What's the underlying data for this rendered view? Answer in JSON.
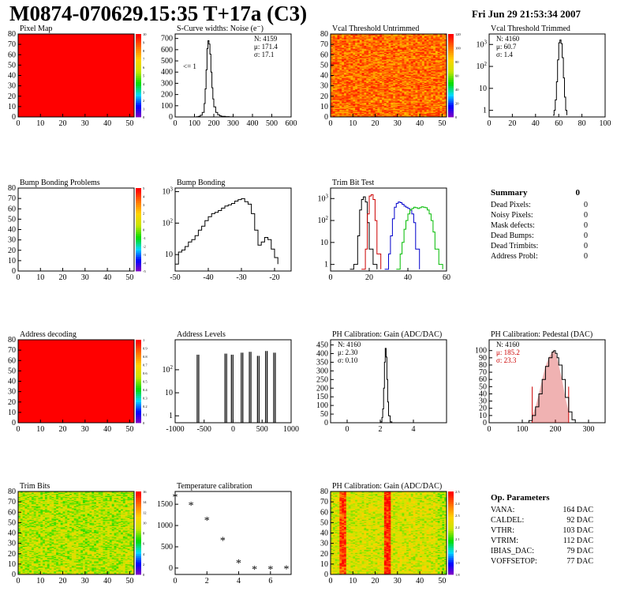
{
  "header": {
    "title": "M0874-070629.15:35 T+17a (C3)",
    "date": "Fri Jun 29 21:53:34 2007"
  },
  "colors": {
    "hist_line": "#000000",
    "trim_series": [
      "#000000",
      "#cc0000",
      "#0000cc",
      "#00bb00"
    ],
    "pedestal_stats": "#cc0000",
    "pedestal_fill": "#cc0000"
  },
  "summary": {
    "title": "Summary",
    "title_value": "0",
    "rows": [
      {
        "label": "Dead Pixels:",
        "value": "0"
      },
      {
        "label": "Noisy Pixels:",
        "value": "0"
      },
      {
        "label": "Mask defects:",
        "value": "0"
      },
      {
        "label": "Dead Bumps:",
        "value": "0"
      },
      {
        "label": "Dead Trimbits:",
        "value": "0"
      },
      {
        "label": "Address Probl:",
        "value": "0"
      }
    ]
  },
  "op_params": {
    "title": "Op. Parameters",
    "rows": [
      {
        "label": "VANA:",
        "value": "164 DAC"
      },
      {
        "label": "CALDEL:",
        "value": "92 DAC"
      },
      {
        "label": "VTHR:",
        "value": "103 DAC"
      },
      {
        "label": "VTRIM:",
        "value": "112 DAC"
      },
      {
        "label": "IBIAS_DAC:",
        "value": "79 DAC"
      },
      {
        "label": "VOFFSETOP:",
        "value": "77 DAC"
      }
    ]
  },
  "chart_data": [
    {
      "id": "pixel-map",
      "type": "heatmap",
      "title": "Pixel Map",
      "pattern": "uniform",
      "xlim": [
        0,
        52
      ],
      "ylim": [
        0,
        80
      ],
      "xticks": [
        "0",
        "10",
        "20",
        "30",
        "40",
        "50"
      ],
      "yticks": [
        "0",
        "10",
        "20",
        "30",
        "40",
        "50",
        "60",
        "70",
        "80"
      ],
      "zticks": [
        "0",
        "1",
        "2",
        "3",
        "4",
        "5",
        "6",
        "7",
        "8",
        "9",
        "10"
      ],
      "zlim": [
        0,
        10
      ]
    },
    {
      "id": "scurve-noise",
      "type": "line",
      "title": "S-Curve widths: Noise (e⁻)",
      "xlim": [
        0,
        600
      ],
      "ylim": [
        0,
        740
      ],
      "xticks": [
        "0",
        "100",
        "200",
        "300",
        "400",
        "500",
        "600"
      ],
      "yticks": [
        "0",
        "100",
        "200",
        "300",
        "400",
        "500",
        "600",
        "700"
      ],
      "stats": [
        "N: 4159",
        "μ: 171.4",
        "σ: 17.1"
      ],
      "annotation": "<= 1",
      "series": [
        {
          "x": [
            90,
            110,
            120,
            130,
            140,
            150,
            155,
            160,
            165,
            170,
            175,
            180,
            185,
            190,
            195,
            200,
            210,
            220,
            230,
            240,
            260,
            280,
            300
          ],
          "y": [
            0,
            2,
            5,
            15,
            40,
            120,
            250,
            420,
            610,
            680,
            650,
            560,
            400,
            260,
            160,
            90,
            40,
            20,
            10,
            5,
            3,
            1,
            0
          ]
        }
      ]
    },
    {
      "id": "vcal-untrimmed",
      "type": "heatmap",
      "title": "Vcal Threshold Untrimmed",
      "pattern": "noise",
      "xlim": [
        0,
        52
      ],
      "ylim": [
        0,
        80
      ],
      "xticks": [
        "0",
        "10",
        "20",
        "30",
        "40",
        "50"
      ],
      "yticks": [
        "0",
        "10",
        "20",
        "30",
        "40",
        "50",
        "60",
        "70",
        "80"
      ],
      "zticks": [
        "0",
        "20",
        "40",
        "60",
        "80",
        "100",
        "120"
      ],
      "zlim": [
        0,
        130
      ],
      "zcenter": 0.85,
      "zspread": 0.12
    },
    {
      "id": "vcal-trimmed",
      "type": "line",
      "title": "Vcal Threshold Trimmed",
      "log": true,
      "xlim": [
        0,
        100
      ],
      "ylim": [
        0.5,
        3000
      ],
      "xticks": [
        "0",
        "20",
        "40",
        "60",
        "80",
        "100"
      ],
      "yticks_log": [
        1,
        10,
        100,
        1000
      ],
      "stats": [
        "N: 4160",
        "μ: 60.7",
        "σ: 1.4"
      ],
      "series": [
        {
          "x": [
            55,
            56,
            57,
            58,
            59,
            60,
            61,
            62,
            63,
            64,
            65,
            66,
            67
          ],
          "y": [
            0.6,
            1,
            3,
            20,
            200,
            1200,
            1600,
            1100,
            250,
            30,
            4,
            1,
            0.6
          ]
        }
      ]
    },
    {
      "id": "bump-bonding-problems",
      "type": "heatmap",
      "title": "Bump Bonding Problems",
      "pattern": "empty",
      "xlim": [
        0,
        52
      ],
      "ylim": [
        0,
        80
      ],
      "xticks": [
        "0",
        "10",
        "20",
        "30",
        "40",
        "50"
      ],
      "yticks": [
        "0",
        "10",
        "20",
        "30",
        "40",
        "50",
        "60",
        "70",
        "80"
      ],
      "zticks": [
        "-5",
        "-4",
        "-3",
        "-2",
        "-1",
        "0",
        "1",
        "2",
        "3",
        "4",
        "5"
      ],
      "zlim": [
        -5,
        5
      ]
    },
    {
      "id": "bump-bonding",
      "type": "line",
      "title": "Bump Bonding",
      "log": true,
      "xlim": [
        -50,
        -15
      ],
      "ylim": [
        3,
        1300
      ],
      "xticks": [
        "-50",
        "-40",
        "-30",
        "-20"
      ],
      "yticks_log": [
        10,
        100,
        1000
      ],
      "series": [
        {
          "x": [
            -50,
            -49,
            -48,
            -47,
            -46,
            -45,
            -44,
            -43,
            -42,
            -41,
            -40,
            -39,
            -38,
            -37,
            -36,
            -35,
            -34,
            -33,
            -32,
            -31,
            -30,
            -29,
            -28,
            -27,
            -26,
            -25,
            -24,
            -23,
            -22,
            -21,
            -20,
            -19
          ],
          "y": [
            5,
            12,
            14,
            18,
            25,
            30,
            40,
            60,
            80,
            120,
            160,
            200,
            220,
            250,
            300,
            350,
            380,
            420,
            500,
            560,
            600,
            480,
            400,
            200,
            60,
            20,
            25,
            35,
            30,
            15,
            8,
            5
          ]
        }
      ]
    },
    {
      "id": "trim-bit-test",
      "type": "line",
      "title": "Trim Bit Test",
      "log": true,
      "xlim": [
        0,
        60
      ],
      "ylim": [
        0.5,
        3000
      ],
      "xticks": [
        "0",
        "20",
        "40",
        "60"
      ],
      "yticks_log": [
        1,
        10,
        100,
        1000
      ],
      "series": [
        {
          "x": [
            10,
            12,
            14,
            15,
            16,
            17,
            18,
            19,
            20,
            22,
            24
          ],
          "y": [
            0.6,
            1,
            20,
            300,
            900,
            1200,
            700,
            80,
            5,
            1,
            0.6
          ]
        },
        {
          "x": [
            16,
            18,
            19,
            20,
            21,
            22,
            23,
            24,
            26
          ],
          "y": [
            0.6,
            5,
            200,
            1300,
            1500,
            900,
            100,
            3,
            0.6
          ]
        },
        {
          "x": [
            28,
            30,
            31,
            32,
            33,
            34,
            35,
            36,
            37,
            38,
            39,
            40,
            41,
            42,
            43,
            44,
            46
          ],
          "y": [
            0.6,
            3,
            20,
            120,
            400,
            600,
            700,
            650,
            550,
            450,
            400,
            350,
            300,
            200,
            80,
            5,
            0.6
          ]
        },
        {
          "x": [
            34,
            36,
            37,
            38,
            39,
            40,
            41,
            42,
            43,
            44,
            45,
            46,
            47,
            48,
            49,
            50,
            51,
            52,
            53,
            54,
            56,
            58
          ],
          "y": [
            0.6,
            3,
            10,
            40,
            100,
            200,
            300,
            350,
            400,
            380,
            350,
            380,
            420,
            400,
            380,
            300,
            200,
            100,
            30,
            5,
            1,
            0.6
          ]
        }
      ]
    },
    {
      "id": "address-decoding",
      "type": "heatmap",
      "title": "Address decoding",
      "pattern": "uniform",
      "xlim": [
        0,
        52
      ],
      "ylim": [
        0,
        80
      ],
      "xticks": [
        "0",
        "10",
        "20",
        "30",
        "40",
        "50"
      ],
      "yticks": [
        "0",
        "10",
        "20",
        "30",
        "40",
        "50",
        "60",
        "70",
        "80"
      ],
      "zticks": [
        "0",
        "0.1",
        "0.2",
        "0.3",
        "0.4",
        "0.5",
        "0.6",
        "0.7",
        "0.8",
        "0.9",
        "1"
      ],
      "zlim": [
        0,
        1
      ]
    },
    {
      "id": "address-levels",
      "type": "line",
      "title": "Address Levels",
      "log": true,
      "xlim": [
        -1000,
        1000
      ],
      "ylim": [
        0.5,
        2000
      ],
      "xticks": [
        "-1000",
        "-500",
        "0",
        "500",
        "1000"
      ],
      "yticks_log": [
        1,
        10,
        100
      ],
      "series": [
        {
          "spikes": [
            [
              -620,
              450
            ],
            [
              -140,
              500
            ],
            [
              -30,
              450
            ],
            [
              140,
              550
            ],
            [
              280,
              600
            ],
            [
              420,
              400
            ],
            [
              560,
              650
            ],
            [
              700,
              550
            ]
          ]
        }
      ]
    },
    {
      "id": "ph-gain-hist",
      "type": "line",
      "title": "PH Calibration: Gain (ADC/DAC)",
      "xlim": [
        -1,
        6
      ],
      "ylim": [
        0,
        480
      ],
      "xticks": [
        "0",
        "2",
        "4"
      ],
      "yticks": [
        "0",
        "50",
        "100",
        "150",
        "200",
        "250",
        "300",
        "350",
        "400",
        "450"
      ],
      "stats": [
        "N: 4160",
        "μ: 2.30",
        "σ: 0.10"
      ],
      "series": [
        {
          "x": [
            1.9,
            2.0,
            2.1,
            2.15,
            2.2,
            2.25,
            2.3,
            2.35,
            2.4,
            2.45,
            2.5,
            2.6,
            2.7
          ],
          "y": [
            0,
            5,
            30,
            80,
            200,
            350,
            430,
            380,
            250,
            120,
            40,
            5,
            0
          ]
        }
      ]
    },
    {
      "id": "ph-pedestal",
      "type": "line",
      "title": "PH Calibration: Pedestal (DAC)",
      "xlim": [
        0,
        350
      ],
      "ylim": [
        0,
        115
      ],
      "xticks": [
        "0",
        "100",
        "200",
        "300"
      ],
      "yticks": [
        "0",
        "10",
        "20",
        "30",
        "40",
        "50",
        "60",
        "70",
        "80",
        "90",
        "100"
      ],
      "stats": [
        "N: 4160",
        "μ: 185.2",
        "σ: 23.3"
      ],
      "fill_range": [
        130,
        240
      ],
      "series": [
        {
          "x": [
            110,
            120,
            130,
            140,
            150,
            160,
            170,
            180,
            190,
            195,
            200,
            205,
            210,
            220,
            230,
            240,
            250,
            260
          ],
          "y": [
            0,
            3,
            10,
            22,
            40,
            60,
            78,
            90,
            98,
            100,
            96,
            90,
            80,
            60,
            35,
            15,
            4,
            0
          ]
        }
      ]
    },
    {
      "id": "trim-bits",
      "type": "heatmap",
      "title": "Trim Bits",
      "pattern": "noise",
      "xlim": [
        0,
        52
      ],
      "ylim": [
        0,
        80
      ],
      "xticks": [
        "0",
        "10",
        "20",
        "30",
        "40",
        "50"
      ],
      "yticks": [
        "0",
        "10",
        "20",
        "30",
        "40",
        "50",
        "60",
        "70",
        "80"
      ],
      "zticks": [
        "0",
        "2",
        "4",
        "6",
        "8",
        "10",
        "12",
        "14",
        "16"
      ],
      "zlim": [
        0,
        16
      ],
      "zcenter": 0.55,
      "zspread": 0.12
    },
    {
      "id": "temperature-calibration",
      "type": "scatter",
      "title": "Temperature calibration",
      "xlim": [
        0,
        7.3
      ],
      "ylim": [
        -150,
        1800
      ],
      "xticks": [
        "0",
        "2",
        "4",
        "6"
      ],
      "yticks": [
        "0",
        "500",
        "1000",
        "1500"
      ],
      "series": [
        {
          "x": [
            0,
            1,
            2,
            3,
            4,
            5,
            6,
            7
          ],
          "y": [
            1680,
            1480,
            1130,
            660,
            130,
            -20,
            -20,
            -10
          ]
        }
      ]
    },
    {
      "id": "ph-gain-map",
      "type": "heatmap",
      "title": "PH Calibration: Gain (ADC/DAC)",
      "pattern": "stripes",
      "xlim": [
        0,
        52
      ],
      "ylim": [
        0,
        80
      ],
      "xticks": [
        "0",
        "10",
        "20",
        "30",
        "40",
        "50"
      ],
      "yticks": [
        "0",
        "10",
        "20",
        "30",
        "40",
        "50",
        "60",
        "70",
        "80"
      ],
      "zticks": [
        "1.8",
        "1.9",
        "2",
        "2.1",
        "2.2",
        "2.3",
        "2.4",
        "2.5"
      ],
      "zlim": [
        1.8,
        2.55
      ],
      "zcenter": 0.6,
      "zspread": 0.12
    }
  ]
}
